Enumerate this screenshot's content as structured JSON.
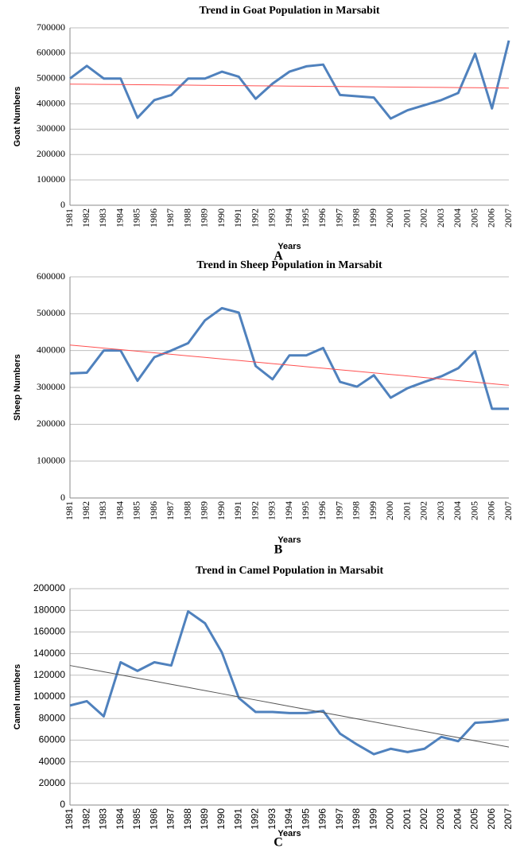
{
  "chart_data": [
    {
      "type": "line",
      "title": "Trend in Goat Population in Marsabit",
      "x_label": "Years",
      "y_label": "Goat Numbers",
      "label": "A",
      "categories": [
        "1981",
        "1982",
        "1983",
        "1984",
        "1985",
        "1986",
        "1987",
        "1988",
        "1989",
        "1990",
        "1991",
        "1992",
        "1993",
        "1994",
        "1995",
        "1996",
        "1997",
        "1998",
        "1999",
        "2000",
        "2001",
        "2002",
        "2003",
        "2004",
        "2005",
        "2006",
        "2007"
      ],
      "series": [
        {
          "color": "#4f81bd",
          "values": [
            500000,
            550000,
            500000,
            500000,
            345000,
            415000,
            435000,
            500000,
            500000,
            527000,
            507000,
            420000,
            480000,
            527000,
            548000,
            555000,
            435000,
            430000,
            425000,
            342000,
            375000,
            395000,
            415000,
            443000,
            598000,
            382000,
            650000
          ]
        },
        {
          "color": "#ff5050",
          "values": [
            478000,
            477400,
            476800,
            476200,
            475600,
            475000,
            474400,
            473800,
            473200,
            472600,
            472000,
            471400,
            470800,
            470200,
            469600,
            469000,
            468400,
            467800,
            467200,
            466600,
            466000,
            465400,
            464800,
            464200,
            463600,
            463000,
            462400
          ]
        }
      ],
      "ylim": [
        0,
        700000
      ],
      "yticks": [
        0,
        100000,
        200000,
        300000,
        400000,
        500000,
        600000,
        700000
      ],
      "grid": true
    },
    {
      "type": "line",
      "title": "Trend in Sheep Population in Marsabit",
      "x_label": "Years",
      "y_label": "Sheep Numbers",
      "label": "B",
      "categories": [
        "1981",
        "1982",
        "1983",
        "1984",
        "1985",
        "1986",
        "1987",
        "1988",
        "1989",
        "1990",
        "1991",
        "1992",
        "1993",
        "1994",
        "1995",
        "1996",
        "1997",
        "1998",
        "1999",
        "2000",
        "2001",
        "2002",
        "2003",
        "2004",
        "2005",
        "2006",
        "2007"
      ],
      "series": [
        {
          "color": "#4f81bd",
          "values": [
            338000,
            340000,
            400000,
            400000,
            318000,
            382000,
            400000,
            420000,
            482000,
            515000,
            503000,
            358000,
            322000,
            387000,
            387000,
            407000,
            315000,
            302000,
            333000,
            272000,
            298000,
            315000,
            330000,
            352000,
            398000,
            242000,
            242000
          ]
        },
        {
          "color": "#ff5050",
          "values": [
            415000,
            410800,
            406600,
            402400,
            398200,
            394000,
            389800,
            385600,
            381400,
            377200,
            373000,
            368800,
            364600,
            360400,
            356200,
            352000,
            347800,
            343600,
            339400,
            335200,
            331000,
            326800,
            322600,
            318400,
            314200,
            310000,
            305800
          ]
        }
      ],
      "ylim": [
        0,
        600000
      ],
      "yticks": [
        0,
        100000,
        200000,
        300000,
        400000,
        500000,
        600000
      ],
      "grid": true
    },
    {
      "type": "line",
      "title": "Trend in Camel Population in Marsabit",
      "x_label": "Years",
      "y_label": "Camel numbers",
      "label": "C",
      "categories": [
        "1981",
        "1982",
        "1983",
        "1984",
        "1985",
        "1986",
        "1987",
        "1988",
        "1989",
        "1990",
        "1991",
        "1992",
        "1993",
        "1994",
        "1995",
        "1996",
        "1997",
        "1998",
        "1999",
        "2000",
        "2001",
        "2002",
        "2003",
        "2004",
        "2005",
        "2006",
        "2007"
      ],
      "series": [
        {
          "color": "#4f81bd",
          "values": [
            92000,
            96000,
            82000,
            132000,
            124000,
            132000,
            129000,
            179000,
            168000,
            141000,
            99000,
            86000,
            86000,
            85000,
            85000,
            87000,
            66000,
            56000,
            47000,
            52000,
            49000,
            52000,
            63000,
            59000,
            76000,
            77000,
            79000
          ]
        },
        {
          "color": "#555555",
          "values": [
            129000,
            126100,
            123200,
            120300,
            117400,
            114500,
            111600,
            108700,
            105800,
            102900,
            100000,
            97100,
            94200,
            91300,
            88400,
            85500,
            82600,
            79700,
            76800,
            73900,
            71000,
            68100,
            65200,
            62300,
            59400,
            56500,
            53600
          ]
        }
      ],
      "ylim": [
        0,
        200000
      ],
      "yticks": [
        0,
        20000,
        40000,
        60000,
        80000,
        100000,
        120000,
        140000,
        160000,
        180000,
        200000
      ],
      "grid": true
    }
  ]
}
